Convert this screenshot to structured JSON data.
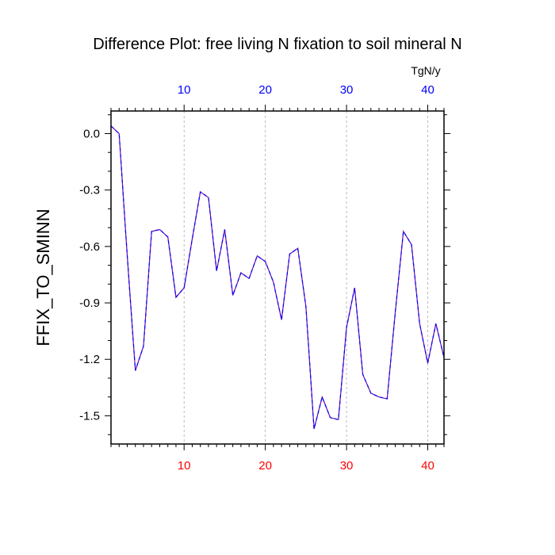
{
  "chart_data": {
    "type": "line",
    "title": "Difference Plot: free living N fixation to soil mineral N",
    "ylabel": "FFIX_TO_SMINN",
    "units": "TgN/y",
    "x": [
      1,
      2,
      3,
      4,
      5,
      6,
      7,
      8,
      9,
      10,
      11,
      12,
      13,
      14,
      15,
      16,
      17,
      18,
      19,
      20,
      21,
      22,
      23,
      24,
      25,
      26,
      27,
      28,
      29,
      30,
      31,
      32,
      33,
      34,
      35,
      36,
      37,
      38,
      39,
      40,
      41,
      42
    ],
    "series": [
      {
        "values": [
          0.04,
          0.0,
          -0.65,
          -1.26,
          -1.13,
          -0.52,
          -0.51,
          -0.55,
          -0.87,
          -0.82,
          -0.56,
          -0.31,
          -0.34,
          -0.73,
          -0.51,
          -0.86,
          -0.74,
          -0.77,
          -0.65,
          -0.68,
          -0.79,
          -0.99,
          -0.64,
          -0.61,
          -0.92,
          -1.57,
          -1.4,
          -1.51,
          -1.52,
          -1.03,
          -0.82,
          -1.28,
          -1.38,
          -1.4,
          -1.41,
          -0.95,
          -0.52,
          -0.59,
          -1.01,
          -1.22,
          -1.01,
          -1.19
        ],
        "color": "#6a0dad",
        "dash_color": "#0000ff",
        "line_style": "dashed"
      }
    ],
    "xlim": [
      1,
      42
    ],
    "ylim": [
      -1.65,
      0.12
    ],
    "yticks": [
      0.0,
      -0.3,
      -0.6,
      -0.9,
      -1.2,
      -1.5
    ],
    "ytick_labels": [
      "0.0",
      "-0.3",
      "-0.6",
      "-0.9",
      "-1.2",
      "-1.5"
    ],
    "xticks": [
      10,
      20,
      30,
      40
    ],
    "xtick_labels_bottom": [
      "10",
      "20",
      "30",
      "40"
    ],
    "xtick_labels_top": [
      "10",
      "20",
      "30",
      "40"
    ],
    "bottom_label_color": "#ff0000",
    "top_label_color": "#0000ff",
    "grid": "vertical dashed at major x ticks"
  }
}
